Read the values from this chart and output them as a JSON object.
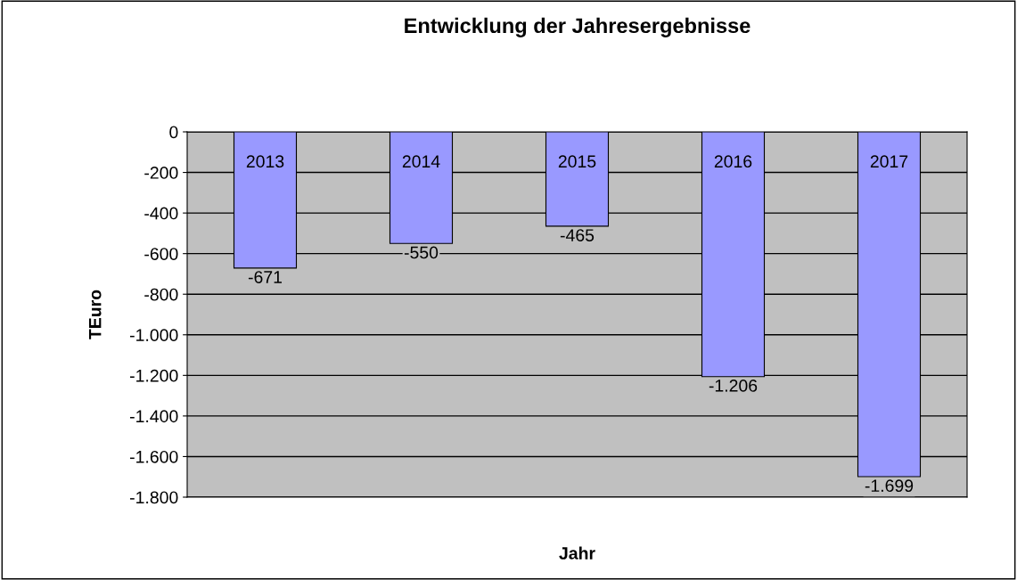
{
  "chart_data": {
    "type": "bar",
    "title": "Entwicklung der Jahresergebnisse",
    "xlabel": "Jahr",
    "ylabel": "TEuro",
    "categories": [
      "2013",
      "2014",
      "2015",
      "2016",
      "2017"
    ],
    "values": [
      -671,
      -550,
      -465,
      -1206,
      -1699
    ],
    "value_labels": [
      "-671",
      "-550",
      "-465",
      "-1.206",
      "-1.699"
    ],
    "color": "#9999ff",
    "ylim": [
      -1800,
      0
    ],
    "yticks": [
      0,
      {
        "value": -200,
        "label": "-200"
      },
      {
        "value": -400,
        "label": "-400"
      },
      {
        "value": -600,
        "label": "-600"
      },
      {
        "value": -800,
        "label": "-800"
      },
      {
        "value": -1000,
        "label": "-1.000"
      },
      {
        "value": -1200,
        "label": "-1.200"
      },
      {
        "value": -1400,
        "label": "-1.400"
      },
      {
        "value": -1600,
        "label": "-1.600"
      },
      {
        "value": -1800,
        "label": "-1.800"
      }
    ],
    "grid": "y",
    "legend": false
  }
}
